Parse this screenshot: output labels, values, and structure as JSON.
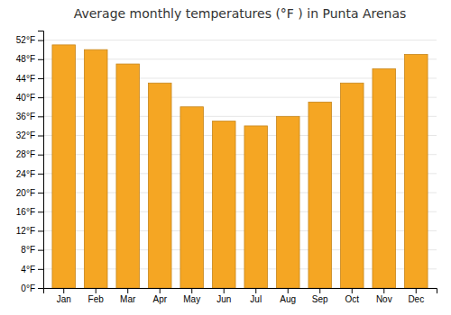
{
  "chart_data": {
    "type": "bar",
    "title": "Average monthly temperatures (°F ) in Punta Arenas",
    "categories": [
      "Jan",
      "Feb",
      "Mar",
      "Apr",
      "May",
      "Jun",
      "Jul",
      "Aug",
      "Sep",
      "Oct",
      "Nov",
      "Dec"
    ],
    "values": [
      51,
      50,
      47,
      43,
      38,
      35,
      34,
      36,
      39,
      43,
      46,
      49
    ],
    "color": "#F5A623",
    "ylim": [
      0,
      54
    ],
    "yticks": [
      {
        "value": 0,
        "label": "0°F"
      },
      {
        "value": 4,
        "label": "4°F"
      },
      {
        "value": 8,
        "label": "8°F"
      },
      {
        "value": 12,
        "label": "12°F"
      },
      {
        "value": 16,
        "label": "16°F"
      },
      {
        "value": 20,
        "label": "20°F"
      },
      {
        "value": 24,
        "label": "24°F"
      },
      {
        "value": 28,
        "label": "28°F"
      },
      {
        "value": 32,
        "label": "32°F"
      },
      {
        "value": 36,
        "label": "36°F"
      },
      {
        "value": 40,
        "label": "40°F"
      },
      {
        "value": 44,
        "label": "44°F"
      },
      {
        "value": 48,
        "label": "48°F"
      },
      {
        "value": 52,
        "label": "52°F"
      }
    ],
    "grid": true
  }
}
